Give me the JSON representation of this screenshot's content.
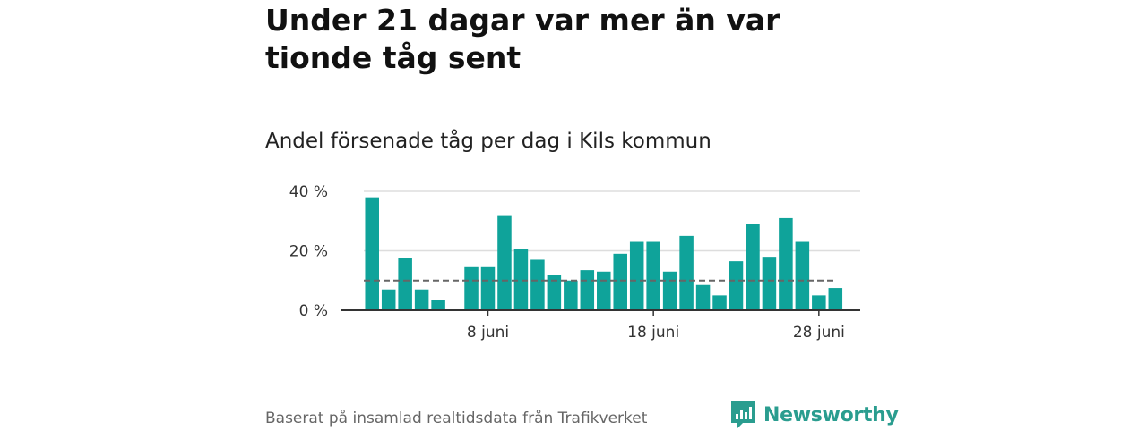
{
  "header": {
    "title": "Under 21 dagar var mer än var tionde tåg sent",
    "subtitle": "Andel försenade tåg per dag i Kils kommun"
  },
  "footer": {
    "source": "Baserat på insamlad realtidsdata från Trafikverket",
    "brand": "Newsworthy"
  },
  "colors": {
    "bar": "#0fa39a",
    "reference_line": "#666666",
    "grid": "#dddddd",
    "brand": "#2a9d8f"
  },
  "chart_data": {
    "type": "bar",
    "x": [
      "2024-06-01",
      "2024-06-02",
      "2024-06-03",
      "2024-06-04",
      "2024-06-05",
      "2024-06-06",
      "2024-06-07",
      "2024-06-08",
      "2024-06-09",
      "2024-06-10",
      "2024-06-11",
      "2024-06-12",
      "2024-06-13",
      "2024-06-14",
      "2024-06-15",
      "2024-06-16",
      "2024-06-17",
      "2024-06-18",
      "2024-06-19",
      "2024-06-20",
      "2024-06-21",
      "2024-06-22",
      "2024-06-23",
      "2024-06-24",
      "2024-06-25",
      "2024-06-26",
      "2024-06-27",
      "2024-06-28",
      "2024-06-29",
      "2024-06-30"
    ],
    "values": [
      38,
      7,
      17.5,
      7,
      3.5,
      null,
      14.5,
      14.5,
      32,
      20.5,
      17,
      12,
      10,
      13.5,
      13,
      19,
      23,
      23,
      13,
      25,
      8.5,
      5,
      16.5,
      29,
      18,
      31,
      23,
      5,
      7.5,
      null
    ],
    "reference_line": 10,
    "ylim": [
      0,
      40
    ],
    "y_ticks": [
      {
        "value": 0,
        "label": "0 %"
      },
      {
        "value": 20,
        "label": "20 %"
      },
      {
        "value": 40,
        "label": "40 %"
      }
    ],
    "x_ticks": [
      {
        "x": "2024-06-08",
        "label": "8 juni"
      },
      {
        "x": "2024-06-18",
        "label": "18 juni"
      },
      {
        "x": "2024-06-28",
        "label": "28 juni"
      }
    ],
    "grid": true,
    "legend": false
  }
}
